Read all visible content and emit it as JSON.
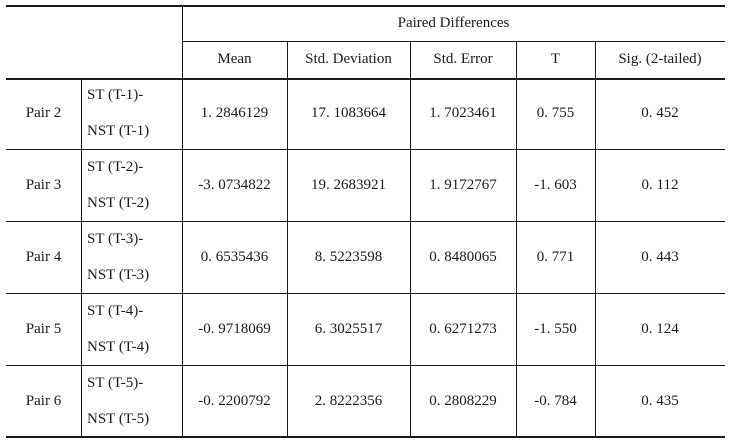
{
  "table": {
    "group_header": "Paired Differences",
    "columns": [
      "Mean",
      "Std. Deviation",
      "Std. Error",
      "T",
      "Sig. (2-tailed)"
    ],
    "rows": [
      {
        "pair": "Pair 2",
        "line1": "ST (T-1)-",
        "line2": "NST (T-1)",
        "values": [
          "1. 2846129",
          "17. 1083664",
          "1. 7023461",
          "0. 755",
          "0. 452"
        ]
      },
      {
        "pair": "Pair 3",
        "line1": "ST (T-2)-",
        "line2": "NST (T-2)",
        "values": [
          "-3. 0734822",
          "19. 2683921",
          "1. 9172767",
          "-1. 603",
          "0. 112"
        ]
      },
      {
        "pair": "Pair 4",
        "line1": "ST (T-3)-",
        "line2": "NST (T-3)",
        "values": [
          "0. 6535436",
          "8. 5223598",
          "0. 8480065",
          "0. 771",
          "0. 443"
        ]
      },
      {
        "pair": "Pair 5",
        "line1": "ST (T-4)-",
        "line2": "NST (T-4)",
        "values": [
          "-0. 9718069",
          "6. 3025517",
          "0. 6271273",
          "-1. 550",
          "0. 124"
        ]
      },
      {
        "pair": "Pair 6",
        "line1": "ST (T-5)-",
        "line2": "NST (T-5)",
        "values": [
          "-0. 2200792",
          "2. 8222356",
          "0. 2808229",
          "-0. 784",
          "0. 435"
        ]
      }
    ]
  }
}
